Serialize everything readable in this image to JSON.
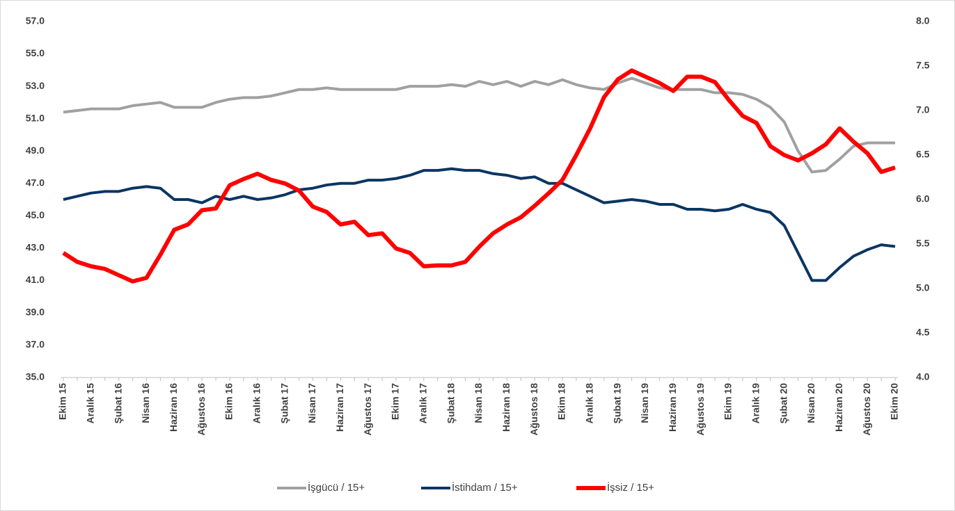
{
  "chart_data": {
    "type": "line",
    "categories": [
      "Ekim 15",
      null,
      "Aralık 15",
      null,
      "Şubat 16",
      null,
      "Nisan 16",
      null,
      "Haziran 16",
      null,
      "Ağustos 16",
      null,
      "Ekim 16",
      null,
      "Aralık 16",
      null,
      "Şubat 17",
      null,
      "Nisan 17",
      null,
      "Haziran 17",
      null,
      "Ağustos 17",
      null,
      "Ekim 17",
      null,
      "Aralık 17",
      null,
      "Şubat 18",
      null,
      "Nisan 18",
      null,
      "Haziran 18",
      null,
      "Ağustos 18",
      null,
      "Ekim 18",
      null,
      "Aralık 18",
      null,
      "Şubat 19",
      null,
      "Nisan 19",
      null,
      "Haziran 19",
      null,
      "Ağustos 19",
      null,
      "Ekim 19",
      null,
      "Aralık 19",
      null,
      "Şubat 20",
      null,
      "Nisan 20",
      null,
      "Haziran 20",
      null,
      "Ağustos 20",
      null,
      "Ekim 20"
    ],
    "series": [
      {
        "name": "İşgücü / 15+",
        "color": "#a0a0a0",
        "values": [
          51.4,
          51.5,
          51.6,
          51.6,
          51.6,
          51.8,
          51.9,
          52.0,
          51.7,
          51.7,
          51.7,
          52.0,
          52.2,
          52.3,
          52.3,
          52.4,
          52.6,
          52.8,
          52.8,
          52.9,
          52.8,
          52.8,
          52.8,
          52.8,
          52.8,
          53.0,
          53.0,
          53.0,
          53.1,
          53.0,
          53.3,
          53.1,
          53.3,
          53.0,
          53.3,
          53.1,
          53.4,
          53.1,
          52.9,
          52.8,
          53.2,
          53.5,
          53.2,
          52.9,
          52.8,
          52.8,
          52.8,
          52.6,
          52.6,
          52.5,
          52.2,
          51.7,
          50.8,
          49.0,
          47.7,
          47.8,
          48.5,
          49.3,
          49.5,
          49.5,
          49.5
        ]
      },
      {
        "name": "İstihdam / 15+",
        "color": "#0b3563",
        "values": [
          46.0,
          46.2,
          46.4,
          46.5,
          46.5,
          46.7,
          46.8,
          46.7,
          46.0,
          46.0,
          45.8,
          46.2,
          46.0,
          46.2,
          46.0,
          46.1,
          46.3,
          46.6,
          46.7,
          46.9,
          47.0,
          47.0,
          47.2,
          47.2,
          47.3,
          47.5,
          47.8,
          47.8,
          47.9,
          47.8,
          47.8,
          47.6,
          47.5,
          47.3,
          47.4,
          47.0,
          47.0,
          46.6,
          46.2,
          45.8,
          45.9,
          46.0,
          45.9,
          45.7,
          45.7,
          45.4,
          45.4,
          45.3,
          45.4,
          45.7,
          45.4,
          45.2,
          44.4,
          42.7,
          41.0,
          41.0,
          41.8,
          42.5,
          42.9,
          43.2,
          43.1
        ]
      },
      {
        "name": "İşsiz / 15+",
        "color": "#ff0000",
        "axis": "y2",
        "values": [
          5.4,
          5.3,
          5.25,
          5.22,
          5.15,
          5.08,
          5.12,
          5.38,
          5.66,
          5.72,
          5.88,
          5.9,
          6.16,
          6.23,
          6.29,
          6.22,
          6.18,
          6.1,
          5.92,
          5.86,
          5.72,
          5.75,
          5.6,
          5.62,
          5.45,
          5.4,
          5.25,
          5.26,
          5.26,
          5.3,
          5.47,
          5.62,
          5.72,
          5.8,
          5.93,
          6.07,
          6.22,
          6.5,
          6.8,
          7.15,
          7.35,
          7.45,
          7.38,
          7.31,
          7.22,
          7.38,
          7.38,
          7.32,
          7.12,
          6.94,
          6.86,
          6.6,
          6.5,
          6.44,
          6.52,
          6.62,
          6.8,
          6.65,
          6.52,
          6.31,
          6.36
        ]
      }
    ],
    "ylim": [
      35,
      57
    ],
    "yticks": [
      {
        "value": 35,
        "label": "35.0"
      },
      {
        "value": 37,
        "label": "37.0"
      },
      {
        "value": 39,
        "label": "39.0"
      },
      {
        "value": 41,
        "label": "41.0"
      },
      {
        "value": 43,
        "label": "43.0"
      },
      {
        "value": 45,
        "label": "45.0"
      },
      {
        "value": 47,
        "label": "47.0"
      },
      {
        "value": 49,
        "label": "49.0"
      },
      {
        "value": 51,
        "label": "51.0"
      },
      {
        "value": 53,
        "label": "53.0"
      },
      {
        "value": 55,
        "label": "55.0"
      },
      {
        "value": 57,
        "label": "57.0"
      }
    ],
    "y2lim": [
      4,
      8
    ],
    "y2ticks": [
      {
        "value": 4,
        "label": "4.0"
      },
      4.5,
      {
        "value": 5,
        "label": "5.0"
      },
      5.5,
      {
        "value": 6,
        "label": "6.0"
      },
      6.5,
      {
        "value": 7,
        "label": "7.0"
      },
      7.5,
      {
        "value": 8,
        "label": "8.0"
      }
    ],
    "grid": false,
    "legend": "bottom"
  }
}
